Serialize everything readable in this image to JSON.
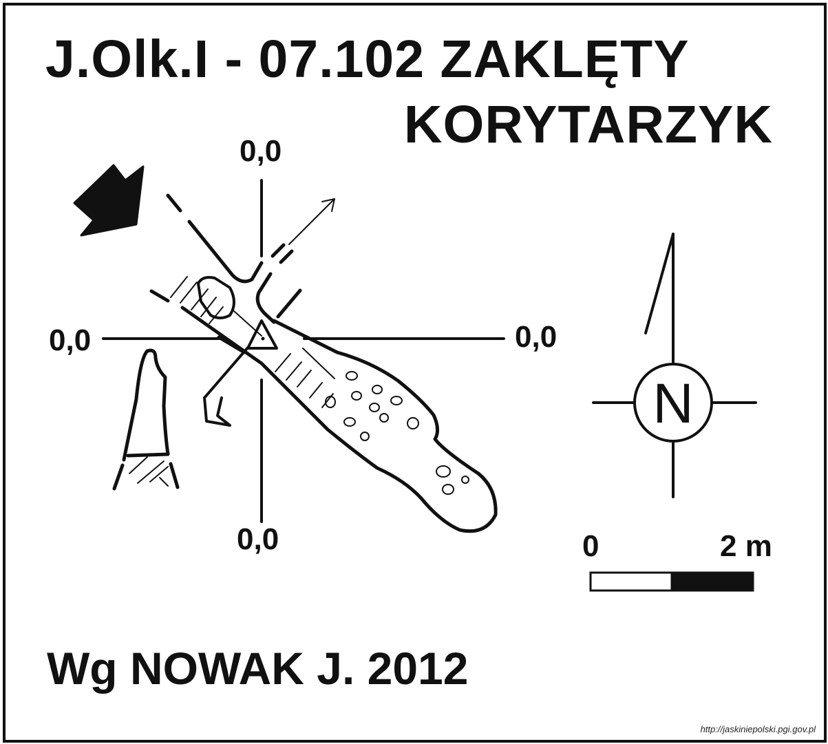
{
  "title": {
    "line1": "J.Olk.I - 07.102  ZAKLĘTY",
    "line2": "KORYTARZYK"
  },
  "coordinates": {
    "top": "0,0",
    "left": "0,0",
    "right": "0,0",
    "bottom": "0,0"
  },
  "north": {
    "letter": "N"
  },
  "scale_bar": {
    "start_label": "0",
    "end_label": "2 m"
  },
  "author": "Wg NOWAK J. 2012",
  "source": "http://jaskiniepolski.pgi.gov.pl",
  "colors": {
    "ink": "#111111",
    "paper": "#ffffff"
  },
  "icons": [
    "entrance-arrow-icon",
    "north-arrow-icon",
    "datum-triangle-icon"
  ]
}
